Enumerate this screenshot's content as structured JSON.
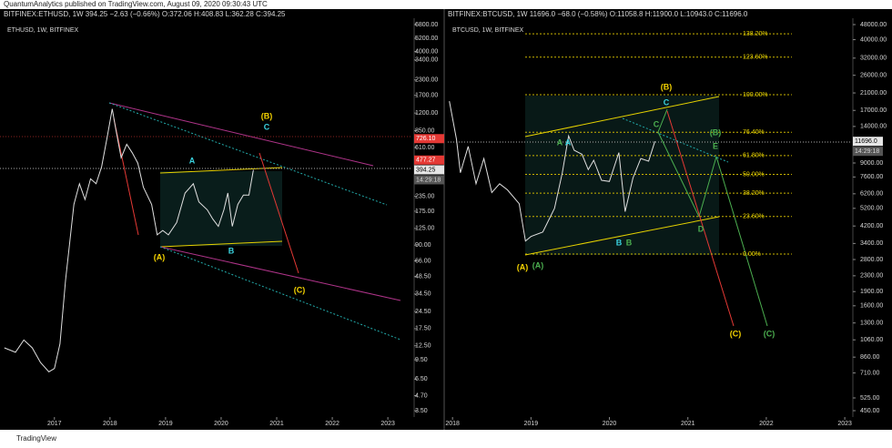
{
  "header": "QuantumAnalytics published on TradingView.com, August 09, 2020 09:30:43 UTC",
  "footer": "TradingView",
  "chart_data": [
    {
      "type": "line",
      "symbol_line": "BITFINEX:ETHUSD, 1W  394.25  −2.63 (−0.66%)  O:372.06  H:408.83  L:362.28  C:394.25",
      "title": "ETHUSD, 1W, BITFINEX",
      "log_scale": true,
      "color": "#e0e0e0",
      "x": [
        2016.1,
        2016.3,
        2016.45,
        2016.6,
        2016.75,
        2016.9,
        2017.0,
        2017.1,
        2017.2,
        2017.35,
        2017.45,
        2017.55,
        2017.65,
        2017.75,
        2017.85,
        2017.95,
        2018.04,
        2018.1,
        2018.2,
        2018.3,
        2018.4,
        2018.5,
        2018.6,
        2018.75,
        2018.85,
        2018.95,
        2019.05,
        2019.2,
        2019.35,
        2019.5,
        2019.6,
        2019.75,
        2019.85,
        2019.95,
        2020.05,
        2020.12,
        2020.2,
        2020.3,
        2020.4,
        2020.5,
        2020.58
      ],
      "values": [
        12,
        11,
        14,
        12,
        9,
        7.5,
        8,
        13,
        45,
        200,
        300,
        220,
        330,
        300,
        420,
        750,
        1300,
        900,
        500,
        650,
        550,
        450,
        280,
        200,
        110,
        120,
        110,
        140,
        250,
        300,
        210,
        180,
        150,
        130,
        180,
        250,
        130,
        200,
        240,
        240,
        394.25
      ],
      "xlim": [
        2016.07,
        2023.44
      ],
      "xticks": [
        2017,
        2018,
        2019,
        2020,
        2021,
        2022,
        2023
      ],
      "ylim": [
        3.5,
        6800
      ],
      "yticks": [
        {
          "value": 6800,
          "label": "6800.00"
        },
        {
          "value": 5200,
          "label": "5200.00"
        },
        {
          "value": 4000,
          "label": "4000.00"
        },
        {
          "value": 3400,
          "label": "3400.00"
        },
        {
          "value": 2300,
          "label": "2300.00"
        },
        {
          "value": 1700,
          "label": "1700.00"
        },
        {
          "value": 1200,
          "label": "1200.00"
        },
        {
          "value": 850,
          "label": "850.00"
        },
        {
          "value": 610,
          "label": "610.00"
        },
        {
          "value": 235,
          "label": "235.00"
        },
        {
          "value": 175,
          "label": "175.00"
        },
        {
          "value": 125,
          "label": "125.00"
        },
        {
          "value": 90,
          "label": "90.00"
        },
        {
          "value": 66,
          "label": "66.00"
        },
        {
          "value": 48.5,
          "label": "48.50"
        },
        {
          "value": 34.5,
          "label": "34.50"
        },
        {
          "value": 24.5,
          "label": "24.50"
        },
        {
          "value": 17.5,
          "label": "17.50"
        },
        {
          "value": 12.5,
          "label": "12.50"
        },
        {
          "value": 9.5,
          "label": "9.50"
        },
        {
          "value": 6.5,
          "label": "6.50"
        },
        {
          "value": 4.7,
          "label": "4.70"
        },
        {
          "value": 3.5,
          "label": "3.50"
        }
      ],
      "price_labels": [
        {
          "value": 726.1,
          "label": "726.10",
          "color": "#e53935"
        },
        {
          "value": 477.27,
          "label": "477.27",
          "color": "#e53935"
        },
        {
          "value": 394.25,
          "label": "394.25",
          "color": "#e6e6e6"
        }
      ],
      "countdown": "14:29:18",
      "annotations": [
        {
          "text": "(B)",
          "color": "#f5d300"
        },
        {
          "text": "C",
          "color": "#3ad3e0"
        },
        {
          "text": "A",
          "color": "#3ad3e0"
        },
        {
          "text": "B",
          "color": "#3ad3e0"
        },
        {
          "text": "(A)",
          "color": "#f5d300"
        },
        {
          "text": "(C)",
          "color": "#f5d300"
        }
      ]
    },
    {
      "type": "line",
      "symbol_line": "BITFINEX:BTCUSD, 1W  11696.0  −68.0 (−0.58%)  O:11058.8  H:11900.0  L:10943.0  C:11696.0",
      "title": "BTCUSD, 1W, BITFINEX",
      "log_scale": true,
      "color": "#e0e0e0",
      "x": [
        2017.96,
        2018.05,
        2018.1,
        2018.2,
        2018.3,
        2018.4,
        2018.5,
        2018.6,
        2018.7,
        2018.85,
        2018.93,
        2019.0,
        2019.15,
        2019.3,
        2019.4,
        2019.48,
        2019.55,
        2019.65,
        2019.73,
        2019.8,
        2019.9,
        2020.0,
        2020.12,
        2020.2,
        2020.3,
        2020.4,
        2020.5,
        2020.58
      ],
      "values": [
        19000,
        12000,
        8000,
        11000,
        7000,
        9500,
        6300,
        7000,
        6500,
        5500,
        3500,
        3700,
        3900,
        5200,
        8000,
        12500,
        10500,
        10000,
        8300,
        9300,
        7300,
        7200,
        10200,
        5000,
        7500,
        9500,
        9200,
        11696
      ],
      "xlim": [
        2017.94,
        2023.08
      ],
      "xticks": [
        2018,
        2019,
        2020,
        2021,
        2022,
        2023
      ],
      "ylim": [
        450,
        48000
      ],
      "yticks": [
        {
          "value": 48000,
          "label": "48000.00"
        },
        {
          "value": 40000,
          "label": "40000.00"
        },
        {
          "value": 32000,
          "label": "32000.00"
        },
        {
          "value": 26000,
          "label": "26000.00"
        },
        {
          "value": 21000,
          "label": "21000.00"
        },
        {
          "value": 17000,
          "label": "17000.00"
        },
        {
          "value": 14000,
          "label": "14000.00"
        },
        {
          "value": 9000,
          "label": "9000.00"
        },
        {
          "value": 7600,
          "label": "7600.00"
        },
        {
          "value": 6200,
          "label": "6200.00"
        },
        {
          "value": 5200,
          "label": "5200.00"
        },
        {
          "value": 4200,
          "label": "4200.00"
        },
        {
          "value": 3400,
          "label": "3400.00"
        },
        {
          "value": 2800,
          "label": "2800.00"
        },
        {
          "value": 2300,
          "label": "2300.00"
        },
        {
          "value": 1900,
          "label": "1900.00"
        },
        {
          "value": 1600,
          "label": "1600.00"
        },
        {
          "value": 1300,
          "label": "1300.00"
        },
        {
          "value": 1060,
          "label": "1060.00"
        },
        {
          "value": 860,
          "label": "860.00"
        },
        {
          "value": 710,
          "label": "710.00"
        },
        {
          "value": 525,
          "label": "525.00"
        },
        {
          "value": 450,
          "label": "450.00"
        }
      ],
      "price_labels": [
        {
          "value": 11696,
          "label": "11696.0",
          "color": "#e6e6e6"
        }
      ],
      "countdown": "14:29:18",
      "fib": [
        {
          "value": 138.2,
          "label": "138.20%"
        },
        {
          "value": 123.6,
          "label": "123.60%"
        },
        {
          "value": 100,
          "label": "100.00%"
        },
        {
          "value": 76.4,
          "label": "76.40%"
        },
        {
          "value": 61.8,
          "label": "61.80%"
        },
        {
          "value": 50,
          "label": "50.00%"
        },
        {
          "value": 38.2,
          "label": "38.20%"
        },
        {
          "value": 23.6,
          "label": "23.60%"
        },
        {
          "value": 0,
          "label": "0.00%"
        }
      ],
      "annotations": [
        {
          "text": "(B)",
          "color": "#f5d300"
        },
        {
          "text": "C",
          "color": "#3ad3e0"
        },
        {
          "text": "A",
          "color": "#4caf50"
        },
        {
          "text": "A",
          "color": "#3ad3e0"
        },
        {
          "text": "C",
          "color": "#4caf50"
        },
        {
          "text": "(B)",
          "color": "#4caf50"
        },
        {
          "text": "E",
          "color": "#4caf50"
        },
        {
          "text": "D",
          "color": "#4caf50"
        },
        {
          "text": "B",
          "color": "#3ad3e0"
        },
        {
          "text": "B",
          "color": "#4caf50"
        },
        {
          "text": "(A)",
          "color": "#f5d300"
        },
        {
          "text": "(A)",
          "color": "#4caf50"
        },
        {
          "text": "(C)",
          "color": "#f5d300"
        },
        {
          "text": "(C)",
          "color": "#4caf50"
        }
      ]
    }
  ]
}
